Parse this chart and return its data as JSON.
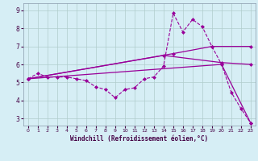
{
  "xlabel": "Windchill (Refroidissement éolien,°C)",
  "background_color": "#d6eef5",
  "grid_color": "#b0cccc",
  "line_color": "#990099",
  "xlim": [
    -0.5,
    23.5
  ],
  "ylim": [
    2.6,
    9.4
  ],
  "xticks": [
    0,
    1,
    2,
    3,
    4,
    5,
    6,
    7,
    8,
    9,
    10,
    11,
    12,
    13,
    14,
    15,
    16,
    17,
    18,
    19,
    20,
    21,
    22,
    23
  ],
  "yticks": [
    3,
    4,
    5,
    6,
    7,
    8,
    9
  ],
  "line1_x": [
    0,
    1,
    2,
    3,
    4,
    5,
    6,
    7,
    8,
    9,
    10,
    11,
    12,
    13,
    14,
    15,
    16,
    17,
    18,
    19,
    20,
    21,
    22,
    23
  ],
  "line1_y": [
    5.2,
    5.5,
    5.3,
    5.3,
    5.3,
    5.2,
    5.1,
    4.75,
    4.6,
    4.15,
    4.6,
    4.7,
    5.2,
    5.3,
    5.9,
    8.85,
    7.8,
    8.5,
    8.1,
    7.0,
    6.0,
    4.45,
    3.55,
    2.75
  ],
  "line2_x": [
    0,
    14,
    20,
    23
  ],
  "line2_y": [
    5.2,
    6.5,
    6.1,
    6.0
  ],
  "line3_x": [
    0,
    15,
    19,
    23
  ],
  "line3_y": [
    5.2,
    6.6,
    7.0,
    7.0
  ],
  "line4_x": [
    0,
    20,
    23
  ],
  "line4_y": [
    5.2,
    6.0,
    2.75
  ],
  "marker": "D",
  "markersize": 2.0,
  "linewidth_main": 0.8,
  "linewidth_trend": 0.9
}
